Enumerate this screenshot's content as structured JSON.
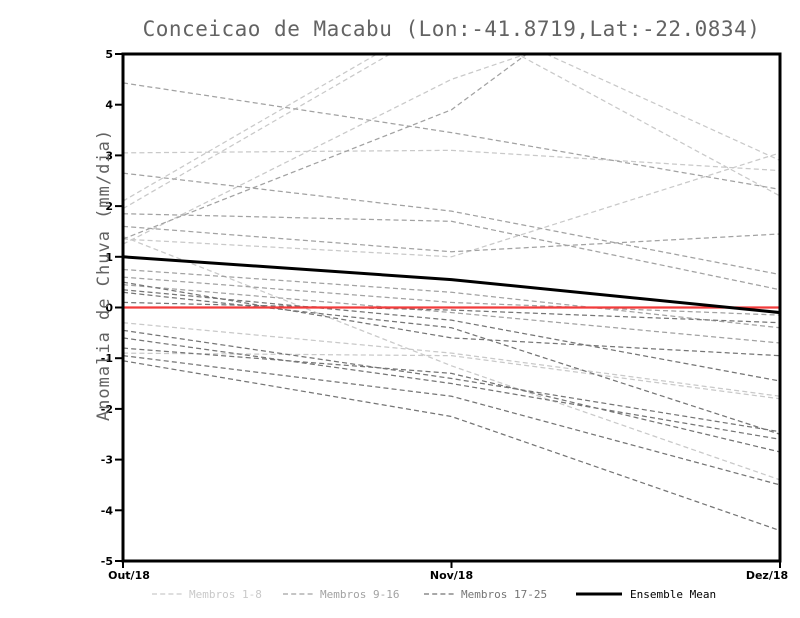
{
  "title": "Conceicao de Macabu (Lon:-41.8719,Lat:-22.0834)",
  "colors": {
    "background": "#ffffff",
    "frame": "#000000",
    "zero_line": "#f23b3b",
    "ensemble_mean": "#000000",
    "members_1_8": "#c9c9c9",
    "members_9_16": "#a2a2a2",
    "members_17_25": "#757575",
    "title_text": "#636363",
    "tick_text": "#000000"
  },
  "chart_data": {
    "type": "line",
    "title": "Conceicao de Macabu (Lon:-41.8719,Lat:-22.0834)",
    "xlabel": "",
    "ylabel": "Anomalia de Chuva (mm/dia)",
    "x_tick_labels": [
      "Out/18",
      "Nov/18",
      "Dez/18"
    ],
    "y_ticks": [
      5,
      4,
      3,
      2,
      1,
      0,
      -1,
      -2,
      -3,
      -4,
      -5
    ],
    "ylim": [
      -5,
      5
    ],
    "grid": false,
    "legend_position": "bottom",
    "zero_line": {
      "value": 0,
      "color": "#f23b3b"
    },
    "groups": [
      {
        "name": "Membros 1-8",
        "color": "#c9c9c9",
        "style": "dashed",
        "members": [
          [
            3.05,
            3.1,
            2.7
          ],
          [
            1.25,
            4.5,
            6.7
          ],
          [
            2.1,
            5.85,
            2.9
          ],
          [
            1.95,
            5.7,
            2.2
          ],
          [
            1.4,
            -1.15,
            -3.4
          ],
          [
            -0.3,
            -0.9,
            -1.75
          ],
          [
            -0.9,
            -0.95,
            -1.8
          ],
          [
            1.35,
            1.0,
            3.05
          ]
        ]
      },
      {
        "name": "Membros 9-16",
        "color": "#a2a2a2",
        "style": "dashed",
        "members": [
          [
            4.43,
            3.45,
            2.33
          ],
          [
            1.35,
            3.9,
            8.7
          ],
          [
            2.65,
            1.9,
            0.65
          ],
          [
            1.6,
            1.1,
            1.45
          ],
          [
            1.85,
            1.7,
            0.35
          ],
          [
            0.75,
            0.3,
            -0.4
          ],
          [
            0.6,
            0.1,
            -0.15
          ],
          [
            0.45,
            -0.1,
            -0.7
          ]
        ]
      },
      {
        "name": "Membros 17-25",
        "color": "#757575",
        "style": "dashed",
        "members": [
          [
            0.35,
            -0.25,
            -1.45
          ],
          [
            0.3,
            -0.4,
            -2.5
          ],
          [
            0.1,
            -0.05,
            -0.3
          ],
          [
            -0.45,
            -1.4,
            -2.45
          ],
          [
            -0.6,
            -1.5,
            -2.6
          ],
          [
            -0.8,
            -1.3,
            -2.85
          ],
          [
            -0.95,
            -1.75,
            -3.5
          ],
          [
            -1.05,
            -2.15,
            -4.4
          ],
          [
            0.5,
            -0.6,
            -0.95
          ]
        ]
      }
    ],
    "ensemble_mean": {
      "name": "Ensemble Mean",
      "color": "#000000",
      "style": "solid",
      "values": [
        1.0,
        0.55,
        -0.1
      ]
    }
  },
  "legend": {
    "items": [
      {
        "label": "Membros 1-8",
        "color": "#c9c9c9",
        "style": "dashed"
      },
      {
        "label": "Membros 9-16",
        "color": "#a2a2a2",
        "style": "dashed"
      },
      {
        "label": "Membros 17-25",
        "color": "#757575",
        "style": "dashed"
      },
      {
        "label": "Ensemble Mean",
        "color": "#000000",
        "style": "solid"
      }
    ]
  }
}
